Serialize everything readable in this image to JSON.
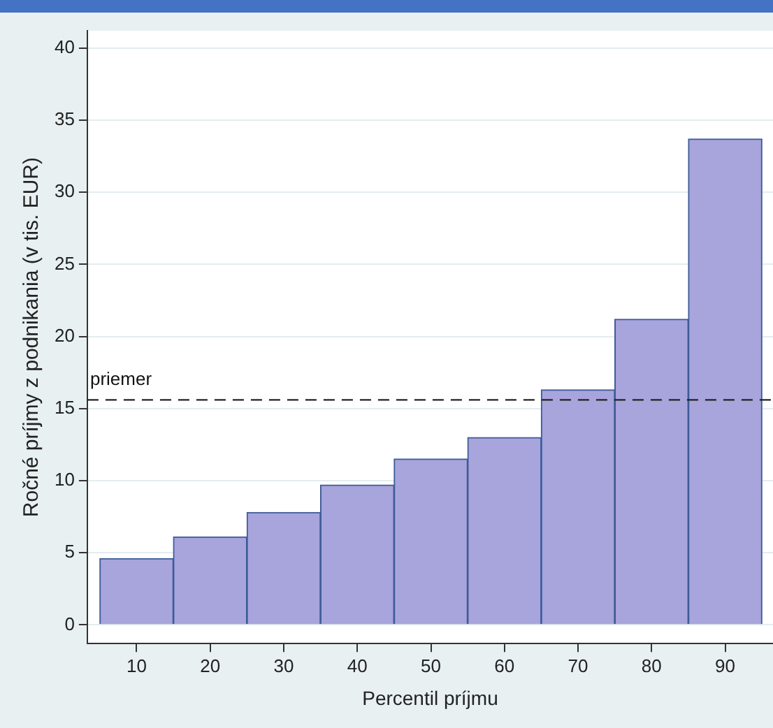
{
  "chart_data": {
    "type": "histogram",
    "xlabel": "Percentil príjmu",
    "ylabel": "Ročné príjmy z podnikania (v tis. EUR)",
    "bins": [
      5,
      15,
      25,
      35,
      45,
      55,
      65,
      75,
      85,
      95
    ],
    "values": [
      4.6,
      6.1,
      7.8,
      9.7,
      11.5,
      13.0,
      16.3,
      21.2,
      33.7
    ],
    "color": "#a8a4dc",
    "xlim": [
      3.3,
      96.5
    ],
    "xticks": [
      10,
      20,
      30,
      40,
      50,
      60,
      70,
      80,
      90
    ],
    "ylim": [
      -1.3,
      41.2
    ],
    "yticks": [
      0,
      5,
      10,
      15,
      20,
      25,
      30,
      35,
      40
    ],
    "grid": "y",
    "ref_lines": [
      {
        "axis": "y",
        "value": 15.6,
        "label": "priemer",
        "color": "#222222",
        "line_style": "dashed"
      }
    ]
  }
}
